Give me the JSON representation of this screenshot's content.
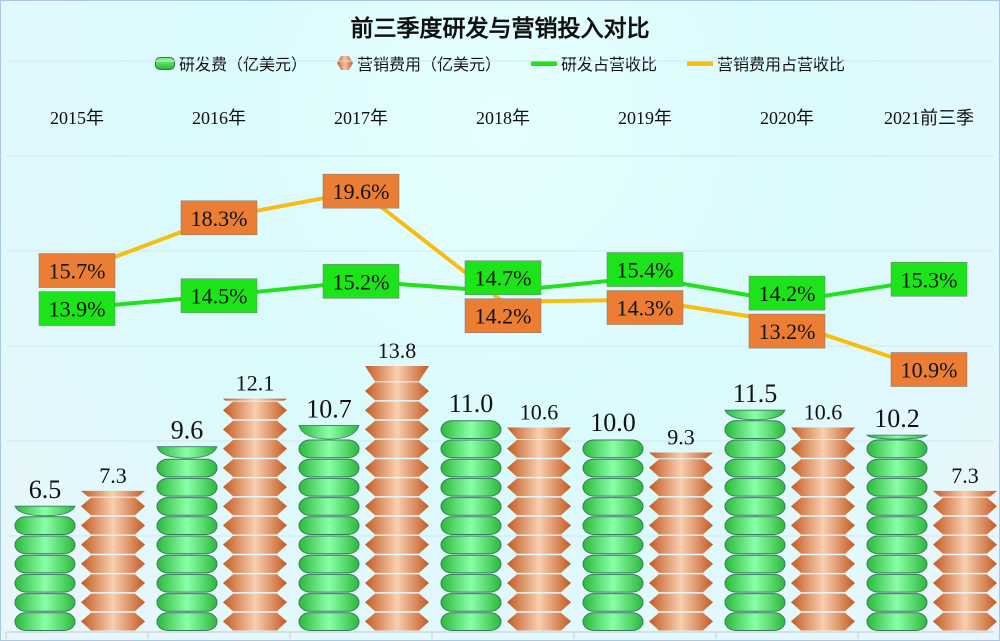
{
  "chart_data": {
    "type": "bar",
    "title": "前三季度研发与营销投入对比",
    "categories": [
      "2015年",
      "2016年",
      "2017年",
      "2018年",
      "2019年",
      "2020年",
      "2021前三季"
    ],
    "series": [
      {
        "name": "研发费（亿美元）",
        "kind": "bar",
        "color": "#3fd64a",
        "values": [
          6.5,
          9.6,
          10.7,
          11.0,
          10.0,
          11.5,
          10.2
        ]
      },
      {
        "name": "营销费用（亿美元）",
        "kind": "bar",
        "color": "#d9783a",
        "values": [
          7.3,
          12.1,
          13.8,
          10.6,
          9.3,
          10.6,
          7.3
        ]
      },
      {
        "name": "研发占营收比",
        "kind": "line",
        "color": "#22e01a",
        "unit": "%",
        "values": [
          13.9,
          14.5,
          15.2,
          14.7,
          15.4,
          14.2,
          15.3
        ]
      },
      {
        "name": "营销费用占营收比",
        "kind": "line",
        "color": "#f8bd10",
        "unit": "%",
        "values": [
          15.7,
          18.3,
          19.6,
          14.2,
          14.3,
          13.2,
          10.9
        ]
      }
    ],
    "legend_position": "top",
    "grid": true
  }
}
